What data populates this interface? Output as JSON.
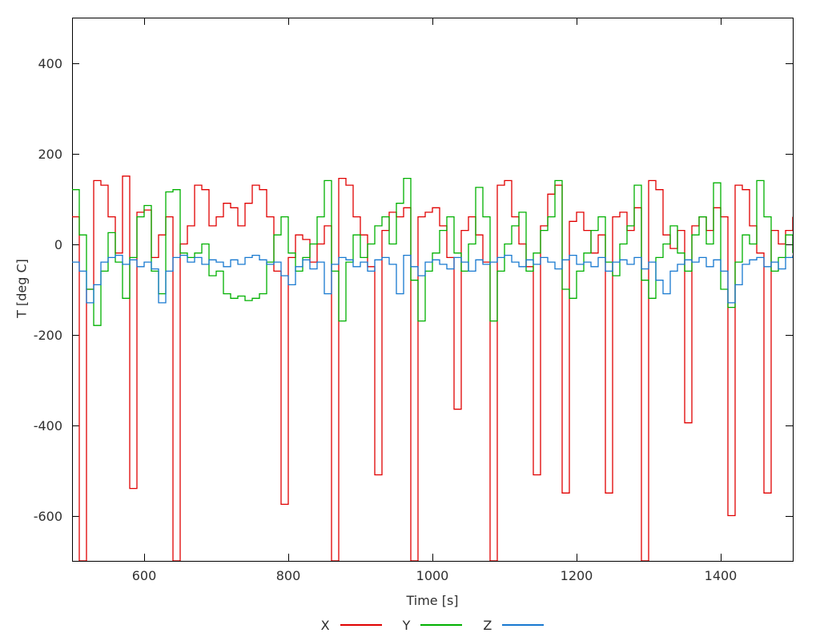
{
  "chart_data": {
    "type": "line",
    "line_style": "steps",
    "title": "",
    "xlabel": "Time [s]",
    "ylabel": "T [deg C]",
    "xlim": [
      500,
      1500
    ],
    "ylim": [
      -700,
      500
    ],
    "x_ticks": [
      600,
      800,
      1000,
      1200,
      1400
    ],
    "y_ticks": [
      -600,
      -400,
      -200,
      0,
      200,
      400
    ],
    "grid": false,
    "legend_position": "bottom-center",
    "background": "#ffffff",
    "border_color": "#000000",
    "x": [
      500,
      510,
      520,
      530,
      540,
      550,
      560,
      570,
      580,
      590,
      600,
      610,
      620,
      630,
      640,
      650,
      660,
      670,
      680,
      690,
      700,
      710,
      720,
      730,
      740,
      750,
      760,
      770,
      780,
      790,
      800,
      810,
      820,
      830,
      840,
      850,
      860,
      870,
      880,
      890,
      900,
      910,
      920,
      930,
      940,
      950,
      960,
      970,
      980,
      990,
      1000,
      1010,
      1020,
      1030,
      1040,
      1050,
      1060,
      1070,
      1080,
      1090,
      1100,
      1110,
      1120,
      1130,
      1140,
      1150,
      1160,
      1170,
      1180,
      1190,
      1200,
      1210,
      1220,
      1230,
      1240,
      1250,
      1260,
      1270,
      1280,
      1290,
      1300,
      1310,
      1320,
      1330,
      1340,
      1350,
      1360,
      1370,
      1380,
      1390,
      1400,
      1410,
      1420,
      1430,
      1440,
      1450,
      1460,
      1470,
      1480,
      1490,
      1500
    ],
    "series": [
      {
        "name": "X",
        "color": "#e00000",
        "values": [
          60,
          -700,
          -100,
          140,
          130,
          60,
          -20,
          150,
          -540,
          70,
          75,
          -30,
          20,
          60,
          -700,
          0,
          40,
          130,
          120,
          40,
          60,
          90,
          80,
          40,
          90,
          130,
          120,
          60,
          -60,
          -575,
          -30,
          20,
          10,
          -40,
          0,
          40,
          -700,
          145,
          130,
          60,
          20,
          -50,
          -510,
          30,
          70,
          60,
          80,
          -700,
          60,
          70,
          80,
          40,
          -30,
          -365,
          30,
          60,
          20,
          -40,
          -700,
          130,
          140,
          60,
          0,
          -50,
          -510,
          40,
          110,
          130,
          -550,
          50,
          70,
          30,
          -20,
          20,
          -550,
          60,
          70,
          30,
          80,
          -700,
          140,
          120,
          20,
          -10,
          30,
          -395,
          40,
          60,
          30,
          80,
          60,
          -600,
          130,
          120,
          40,
          -20,
          -550,
          30,
          0,
          30,
          60
        ]
      },
      {
        "name": "Y",
        "color": "#00b000",
        "values": [
          120,
          20,
          -100,
          -180,
          -60,
          25,
          -40,
          -120,
          -30,
          60,
          85,
          -60,
          -110,
          115,
          120,
          -20,
          -30,
          -20,
          0,
          -70,
          -60,
          -110,
          -120,
          -115,
          -125,
          -120,
          -110,
          -40,
          20,
          60,
          -20,
          -60,
          -30,
          0,
          60,
          140,
          -60,
          -170,
          -40,
          20,
          -30,
          0,
          40,
          60,
          0,
          90,
          145,
          -80,
          -170,
          -60,
          -20,
          30,
          60,
          -20,
          -60,
          0,
          125,
          60,
          -170,
          -60,
          0,
          40,
          70,
          -60,
          -20,
          30,
          60,
          140,
          -100,
          -120,
          -60,
          -20,
          30,
          60,
          -40,
          -70,
          0,
          40,
          130,
          -80,
          -120,
          -30,
          0,
          40,
          -20,
          -60,
          20,
          60,
          0,
          135,
          -100,
          -140,
          -40,
          20,
          0,
          140,
          60,
          -60,
          -30,
          20,
          -20
        ]
      },
      {
        "name": "Z",
        "color": "#1778d0",
        "values": [
          -40,
          -60,
          -130,
          -90,
          -40,
          -30,
          -25,
          -45,
          -35,
          -50,
          -40,
          -55,
          -130,
          -60,
          -30,
          -25,
          -40,
          -30,
          -45,
          -35,
          -40,
          -50,
          -35,
          -45,
          -30,
          -25,
          -35,
          -45,
          -40,
          -70,
          -90,
          -50,
          -35,
          -55,
          -40,
          -110,
          -45,
          -30,
          -35,
          -50,
          -40,
          -60,
          -35,
          -30,
          -45,
          -110,
          -25,
          -50,
          -70,
          -40,
          -35,
          -45,
          -55,
          -30,
          -40,
          -60,
          -35,
          -45,
          -40,
          -30,
          -25,
          -40,
          -50,
          -35,
          -45,
          -30,
          -40,
          -55,
          -35,
          -25,
          -45,
          -40,
          -50,
          -30,
          -60,
          -40,
          -35,
          -45,
          -30,
          -55,
          -40,
          -80,
          -110,
          -60,
          -45,
          -35,
          -40,
          -30,
          -50,
          -35,
          -60,
          -130,
          -90,
          -45,
          -35,
          -30,
          -50,
          -40,
          -55,
          -30,
          -25
        ]
      }
    ]
  },
  "legend": {
    "entries": [
      {
        "label": "X"
      },
      {
        "label": "Y"
      },
      {
        "label": "Z"
      }
    ]
  }
}
